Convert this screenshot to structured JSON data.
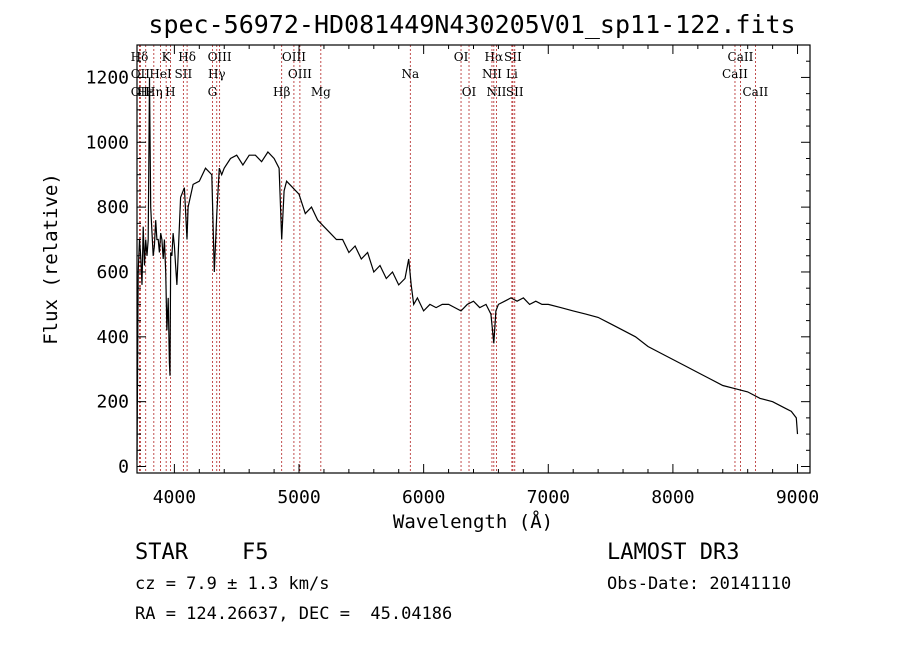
{
  "chart_data": {
    "type": "line",
    "title": "spec-56972-HD081449N430205V01_sp11-122.fits",
    "xlabel": "Wavelength (Å)",
    "ylabel": "Flux (relative)",
    "xlim": [
      3700,
      9100
    ],
    "ylim": [
      -20,
      1300
    ],
    "xticks": [
      4000,
      5000,
      6000,
      7000,
      8000,
      9000
    ],
    "yticks": [
      0,
      200,
      400,
      600,
      800,
      1000,
      1200
    ],
    "series": [
      {
        "name": "spectrum",
        "x": [
          3700,
          3710,
          3720,
          3730,
          3740,
          3750,
          3760,
          3770,
          3780,
          3790,
          3800,
          3810,
          3820,
          3830,
          3840,
          3850,
          3860,
          3870,
          3880,
          3890,
          3900,
          3910,
          3920,
          3930,
          3940,
          3950,
          3960,
          3965,
          3970,
          3980,
          3990,
          4000,
          4010,
          4020,
          4050,
          4080,
          4101,
          4110,
          4150,
          4200,
          4250,
          4300,
          4320,
          4340,
          4360,
          4380,
          4400,
          4450,
          4500,
          4550,
          4600,
          4650,
          4700,
          4750,
          4800,
          4840,
          4861,
          4880,
          4900,
          4950,
          5000,
          5050,
          5100,
          5150,
          5200,
          5250,
          5300,
          5350,
          5400,
          5450,
          5500,
          5550,
          5600,
          5650,
          5700,
          5750,
          5800,
          5850,
          5880,
          5900,
          5920,
          5950,
          6000,
          6050,
          6100,
          6150,
          6200,
          6250,
          6300,
          6350,
          6400,
          6450,
          6500,
          6540,
          6563,
          6580,
          6600,
          6650,
          6700,
          6750,
          6800,
          6850,
          6900,
          6950,
          7000,
          7100,
          7200,
          7300,
          7400,
          7500,
          7600,
          7700,
          7800,
          7900,
          8000,
          8100,
          8200,
          8300,
          8400,
          8500,
          8600,
          8700,
          8800,
          8900,
          8950,
          8990,
          9000
        ],
        "values": [
          20,
          600,
          700,
          650,
          560,
          740,
          620,
          700,
          650,
          700,
          1200,
          800,
          720,
          650,
          680,
          760,
          700,
          700,
          660,
          720,
          700,
          640,
          700,
          600,
          420,
          520,
          320,
          280,
          660,
          650,
          720,
          680,
          620,
          560,
          830,
          860,
          700,
          800,
          870,
          880,
          920,
          900,
          600,
          780,
          920,
          900,
          920,
          950,
          960,
          930,
          960,
          960,
          940,
          970,
          950,
          920,
          700,
          850,
          880,
          860,
          840,
          780,
          800,
          760,
          740,
          720,
          700,
          700,
          660,
          680,
          640,
          660,
          600,
          620,
          580,
          600,
          560,
          580,
          640,
          560,
          500,
          520,
          480,
          500,
          490,
          500,
          500,
          490,
          480,
          500,
          510,
          490,
          500,
          470,
          380,
          480,
          500,
          510,
          520,
          510,
          520,
          500,
          510,
          500,
          500,
          490,
          480,
          470,
          460,
          440,
          420,
          400,
          370,
          350,
          330,
          310,
          290,
          270,
          250,
          240,
          230,
          210,
          200,
          180,
          170,
          150,
          100
        ]
      }
    ]
  },
  "spectral_lines": [
    {
      "name": "Hδ",
      "x": 3720,
      "row": 1
    },
    {
      "name": "OII",
      "x": 3727,
      "row": 2
    },
    {
      "name": "OII",
      "x": 3727,
      "row": 3
    },
    {
      "name": "Hε",
      "x": 3770,
      "row": 3
    },
    {
      "name": "K",
      "x": 3934,
      "row": 1
    },
    {
      "name": "HeI",
      "x": 3889,
      "row": 2
    },
    {
      "name": "Hη",
      "x": 3835,
      "row": 3
    },
    {
      "name": "SII",
      "x": 4072,
      "row": 2
    },
    {
      "name": "H",
      "x": 3968,
      "row": 3
    },
    {
      "name": "Hδ",
      "x": 4102,
      "row": 1
    },
    {
      "name": "OIII",
      "x": 4363,
      "row": 1
    },
    {
      "name": "Hγ",
      "x": 4340,
      "row": 2
    },
    {
      "name": "G",
      "x": 4305,
      "row": 3
    },
    {
      "name": "Hβ",
      "x": 4861,
      "row": 3
    },
    {
      "name": "OIII",
      "x": 4959,
      "row": 1
    },
    {
      "name": "OIII",
      "x": 5007,
      "row": 2
    },
    {
      "name": "Mg",
      "x": 5175,
      "row": 3
    },
    {
      "name": "Na",
      "x": 5893,
      "row": 2
    },
    {
      "name": "OI",
      "x": 6300,
      "row": 1
    },
    {
      "name": "OI",
      "x": 6364,
      "row": 3
    },
    {
      "name": "Hα",
      "x": 6563,
      "row": 1
    },
    {
      "name": "SII",
      "x": 6716,
      "row": 1
    },
    {
      "name": "NII",
      "x": 6548,
      "row": 2
    },
    {
      "name": "Li",
      "x": 6708,
      "row": 2
    },
    {
      "name": "NII",
      "x": 6584,
      "row": 3
    },
    {
      "name": "SII",
      "x": 6731,
      "row": 3
    },
    {
      "name": "CaII",
      "x": 8542,
      "row": 1
    },
    {
      "name": "CaII",
      "x": 8498,
      "row": 2
    },
    {
      "name": "CaII",
      "x": 8662,
      "row": 3
    }
  ],
  "info": {
    "class": "STAR",
    "subclass": "F5",
    "survey": "LAMOST DR3",
    "cz": "cz = 7.9 ± 1.3 km/s",
    "obs_date": "Obs-Date: 20141110",
    "coords": "RA = 124.26637, DEC =  45.04186"
  }
}
